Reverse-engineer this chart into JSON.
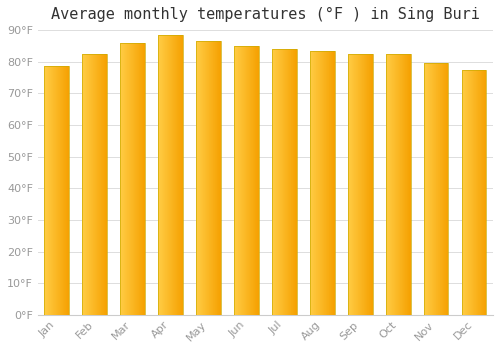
{
  "title": "Average monthly temperatures (°F ) in Sing Buri",
  "months": [
    "Jan",
    "Feb",
    "Mar",
    "Apr",
    "May",
    "Jun",
    "Jul",
    "Aug",
    "Sep",
    "Oct",
    "Nov",
    "Dec"
  ],
  "values": [
    78.5,
    82.5,
    86.0,
    88.5,
    86.5,
    85.0,
    84.0,
    83.5,
    82.5,
    82.5,
    79.5,
    77.5
  ],
  "bar_color_left": "#FFCC44",
  "bar_color_right": "#F5A000",
  "bar_edge_color": "#CCAA00",
  "ylim": [
    0,
    90
  ],
  "ytick_step": 10,
  "background_color": "#FFFFFF",
  "plot_bg_color": "#FFFFFF",
  "grid_color": "#DDDDDD",
  "title_fontsize": 11,
  "tick_label_color": "#999999",
  "title_color": "#333333"
}
